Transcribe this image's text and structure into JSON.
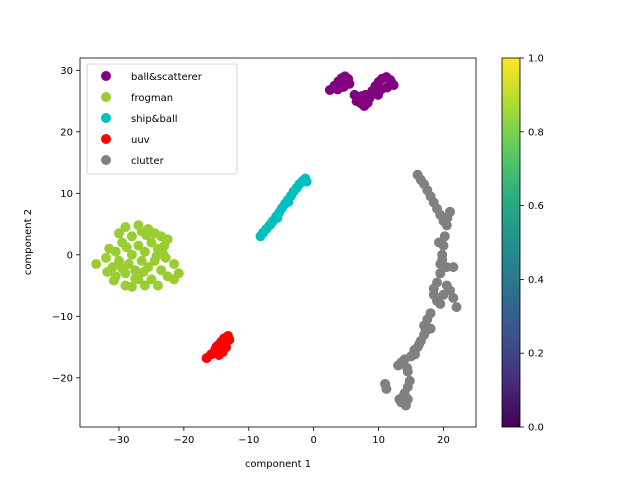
{
  "chart_data": {
    "type": "scatter",
    "xlabel": "component 1",
    "ylabel": "component 2",
    "xlim": [
      -36,
      25
    ],
    "ylim": [
      -28,
      32
    ],
    "xticks": [
      -30,
      -20,
      -10,
      0,
      10,
      20
    ],
    "yticks": [
      -20,
      -10,
      0,
      10,
      20,
      30
    ],
    "legend_position": "top-left",
    "grid": false,
    "series": [
      {
        "name": "ball&scatterer",
        "color": "#800080",
        "points": [
          [
            2.5,
            26.8
          ],
          [
            3.2,
            27.5
          ],
          [
            3.8,
            28.2
          ],
          [
            4.3,
            28.7
          ],
          [
            4.8,
            29.0
          ],
          [
            5.3,
            28.6
          ],
          [
            5.5,
            27.8
          ],
          [
            4.6,
            27.3
          ],
          [
            3.7,
            26.9
          ],
          [
            5.0,
            28.1
          ],
          [
            6.3,
            26.0
          ],
          [
            6.8,
            25.3
          ],
          [
            7.3,
            24.6
          ],
          [
            7.8,
            24.2
          ],
          [
            8.3,
            24.7
          ],
          [
            8.6,
            25.5
          ],
          [
            7.4,
            25.8
          ],
          [
            6.6,
            25.0
          ],
          [
            8.0,
            26.0
          ],
          [
            9.0,
            26.6
          ],
          [
            9.5,
            27.4
          ],
          [
            10.0,
            28.1
          ],
          [
            10.5,
            28.6
          ],
          [
            11.2,
            28.9
          ],
          [
            11.8,
            28.4
          ],
          [
            12.3,
            27.6
          ],
          [
            11.3,
            27.2
          ],
          [
            10.4,
            26.9
          ],
          [
            9.9,
            26.0
          ],
          [
            12.0,
            28.0
          ]
        ]
      },
      {
        "name": "frogman",
        "color": "#9acd32",
        "points": [
          [
            -33.5,
            -1.5
          ],
          [
            -32.0,
            -0.5
          ],
          [
            -31.5,
            1.0
          ],
          [
            -31.0,
            -2.0
          ],
          [
            -30.5,
            0.5
          ],
          [
            -30.0,
            -1.0
          ],
          [
            -29.5,
            2.0
          ],
          [
            -29.0,
            -3.0
          ],
          [
            -30.5,
            -3.5
          ],
          [
            -31.8,
            -2.8
          ],
          [
            -30.0,
            3.5
          ],
          [
            -29.0,
            4.5
          ],
          [
            -28.0,
            3.0
          ],
          [
            -27.0,
            4.8
          ],
          [
            -26.5,
            3.8
          ],
          [
            -25.5,
            4.2
          ],
          [
            -24.5,
            3.5
          ],
          [
            -23.5,
            3.0
          ],
          [
            -22.5,
            2.5
          ],
          [
            -23.0,
            1.5
          ],
          [
            -24.0,
            1.0
          ],
          [
            -25.0,
            2.0
          ],
          [
            -26.0,
            0.5
          ],
          [
            -27.0,
            1.5
          ],
          [
            -28.0,
            0.0
          ],
          [
            -28.5,
            -1.5
          ],
          [
            -27.5,
            -2.5
          ],
          [
            -26.5,
            -1.0
          ],
          [
            -25.5,
            -2.0
          ],
          [
            -24.5,
            -1.0
          ],
          [
            -23.5,
            -2.5
          ],
          [
            -22.5,
            -3.5
          ],
          [
            -21.5,
            -4.0
          ],
          [
            -20.8,
            -3.0
          ],
          [
            -21.5,
            -1.5
          ],
          [
            -25.0,
            -4.0
          ],
          [
            -26.0,
            -5.0
          ],
          [
            -27.0,
            -4.0
          ],
          [
            -28.0,
            -5.2
          ],
          [
            -29.0,
            -5.0
          ],
          [
            -24.0,
            -5.0
          ],
          [
            -27.5,
            -3.8
          ],
          [
            -26.2,
            -2.8
          ],
          [
            -28.8,
            1.2
          ],
          [
            -25.8,
            3.2
          ],
          [
            -24.2,
            -0.2
          ],
          [
            -22.8,
            -0.5
          ],
          [
            -23.2,
            0.2
          ],
          [
            -29.5,
            -2.2
          ],
          [
            -30.8,
            -4.2
          ]
        ]
      },
      {
        "name": "ship&ball",
        "color": "#00bfbf",
        "points": [
          [
            -8.2,
            3.0
          ],
          [
            -7.8,
            3.6
          ],
          [
            -7.3,
            4.2
          ],
          [
            -6.8,
            4.8
          ],
          [
            -6.3,
            5.5
          ],
          [
            -5.8,
            6.2
          ],
          [
            -5.3,
            6.9
          ],
          [
            -4.9,
            7.6
          ],
          [
            -4.4,
            8.3
          ],
          [
            -4.0,
            8.9
          ],
          [
            -3.5,
            9.6
          ],
          [
            -3.1,
            10.3
          ],
          [
            -2.6,
            10.9
          ],
          [
            -2.2,
            11.5
          ],
          [
            -1.7,
            12.0
          ],
          [
            -1.3,
            12.4
          ],
          [
            -1.1,
            11.9
          ],
          [
            -3.9,
            8.6
          ],
          [
            -5.6,
            6.0
          ],
          [
            -6.6,
            5.0
          ]
        ]
      },
      {
        "name": "uuv",
        "color": "#ff0000",
        "points": [
          [
            -16.5,
            -16.8
          ],
          [
            -15.8,
            -16.2
          ],
          [
            -15.2,
            -15.5
          ],
          [
            -14.8,
            -14.8
          ],
          [
            -14.3,
            -14.2
          ],
          [
            -13.8,
            -13.6
          ],
          [
            -13.2,
            -13.2
          ],
          [
            -13.0,
            -13.8
          ],
          [
            -13.5,
            -15.0
          ],
          [
            -14.0,
            -15.8
          ],
          [
            -14.6,
            -16.3
          ],
          [
            -15.4,
            -16.0
          ],
          [
            -13.6,
            -14.4
          ],
          [
            -15.0,
            -15.0
          ]
        ]
      },
      {
        "name": "clutter",
        "color": "#808080",
        "points": [
          [
            16.0,
            13.0
          ],
          [
            16.5,
            12.2
          ],
          [
            17.0,
            11.5
          ],
          [
            17.5,
            10.5
          ],
          [
            18.0,
            9.5
          ],
          [
            18.5,
            8.5
          ],
          [
            19.0,
            7.5
          ],
          [
            19.5,
            6.5
          ],
          [
            20.0,
            5.5
          ],
          [
            20.5,
            4.8
          ],
          [
            21.0,
            7.0
          ],
          [
            20.2,
            3.0
          ],
          [
            20.0,
            1.5
          ],
          [
            19.8,
            0.0
          ],
          [
            19.5,
            -1.5
          ],
          [
            20.5,
            -2.0
          ],
          [
            21.5,
            -2.0
          ],
          [
            19.5,
            -3.0
          ],
          [
            19.0,
            -4.5
          ],
          [
            18.5,
            -5.5
          ],
          [
            18.5,
            -6.5
          ],
          [
            19.0,
            -7.5
          ],
          [
            19.5,
            -8.0
          ],
          [
            20.0,
            -6.5
          ],
          [
            20.5,
            -5.0
          ],
          [
            21.0,
            -5.8
          ],
          [
            21.5,
            -7.0
          ],
          [
            22.0,
            -8.5
          ],
          [
            18.0,
            -9.5
          ],
          [
            17.5,
            -10.5
          ],
          [
            17.0,
            -11.5
          ],
          [
            18.0,
            -12.0
          ],
          [
            17.0,
            -13.0
          ],
          [
            16.5,
            -14.0
          ],
          [
            16.0,
            -15.0
          ],
          [
            15.5,
            -15.5
          ],
          [
            15.0,
            -16.5
          ],
          [
            14.0,
            -17.0
          ],
          [
            13.5,
            -17.5
          ],
          [
            13.0,
            -18.0
          ],
          [
            14.5,
            -19.0
          ],
          [
            14.8,
            -20.5
          ],
          [
            14.5,
            -21.5
          ],
          [
            14.0,
            -22.5
          ],
          [
            14.5,
            -23.5
          ],
          [
            13.5,
            -24.0
          ],
          [
            14.2,
            -24.5
          ],
          [
            13.8,
            -23.0
          ],
          [
            11.0,
            -21.0
          ],
          [
            11.2,
            -21.8
          ],
          [
            19.3,
            2.0
          ],
          [
            19.8,
            -0.8
          ],
          [
            20.6,
            6.0
          ],
          [
            17.2,
            -12.5
          ],
          [
            16.2,
            -14.6
          ],
          [
            15.6,
            -16.2
          ],
          [
            14.4,
            -18.4
          ],
          [
            13.2,
            -23.5
          ]
        ]
      }
    ],
    "colorbar": {
      "min": 0.0,
      "max": 1.0,
      "ticks": [
        "0.0",
        "0.2",
        "0.4",
        "0.6",
        "0.8",
        "1.0"
      ],
      "colormap": "viridis"
    }
  }
}
